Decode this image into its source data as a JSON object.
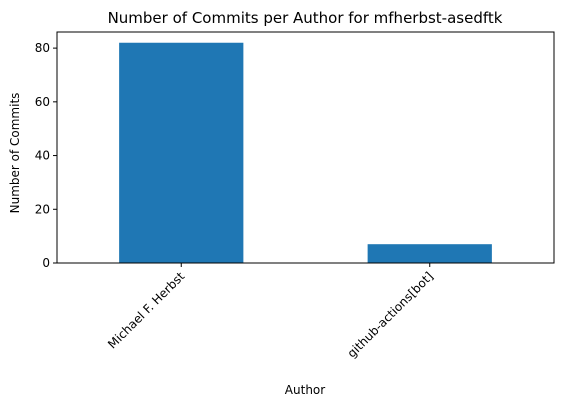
{
  "chart_data": {
    "type": "bar",
    "title": "Number of Commits per Author for mfherbst-asedftk",
    "xlabel": "Author",
    "ylabel": "Number of Commits",
    "categories": [
      "Michael F. Herbst",
      "github-actions[bot]"
    ],
    "values": [
      82,
      7
    ],
    "ylim": [
      0,
      86
    ],
    "yticks": [
      0,
      20,
      40,
      60,
      80
    ],
    "grid": false,
    "legend": "none",
    "bar_color": "#1f77b4"
  }
}
